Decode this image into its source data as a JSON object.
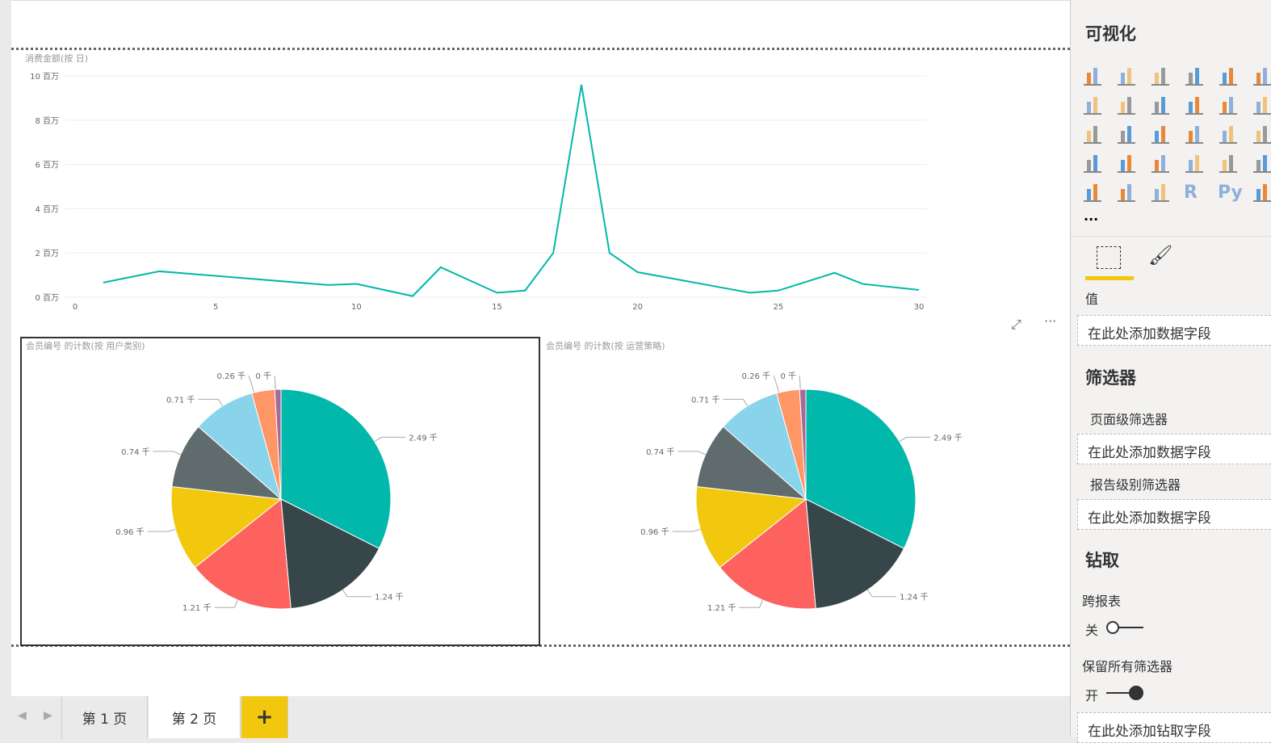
{
  "line_chart": {
    "title": "消费金额(按 日)",
    "y_ticks": [
      "0 百万",
      "2 百万",
      "4 百万",
      "6 百万",
      "8 百万",
      "10 百万"
    ],
    "x_ticks": [
      "0",
      "5",
      "10",
      "15",
      "20",
      "25",
      "30"
    ],
    "line_color": "#01b8aa"
  },
  "chart_data": [
    {
      "type": "line",
      "title": "消费金额(按 日)",
      "xlabel": "",
      "ylabel": "",
      "unit": "百万",
      "xlim": [
        0,
        30
      ],
      "ylim": [
        0,
        10
      ],
      "x": [
        1,
        3,
        9,
        10,
        12,
        13,
        15,
        16,
        17,
        18,
        19,
        20,
        24,
        25,
        27,
        28,
        30
      ],
      "y": [
        0.66,
        1.17,
        0.55,
        0.6,
        0.05,
        1.35,
        0.2,
        0.3,
        2.0,
        9.6,
        2.0,
        1.13,
        0.2,
        0.3,
        1.1,
        0.6,
        0.33
      ]
    },
    {
      "type": "pie",
      "title": "会员编号 的计数(按 用户类别)",
      "values": [
        2.49,
        1.24,
        1.21,
        0.96,
        0.74,
        0.71,
        0.26,
        0.07
      ],
      "labels": [
        "2.49 千",
        "1.24 千",
        "1.21 千",
        "0.96 千",
        "0.74 千",
        "0.71 千",
        "0.26 千",
        "0 千"
      ],
      "colors": [
        "#01b8aa",
        "#374649",
        "#fd625e",
        "#f2c80f",
        "#5f6b6d",
        "#8ad4eb",
        "#fe9666",
        "#a66999"
      ]
    },
    {
      "type": "pie",
      "title": "会员编号 的计数(按 运营策略)",
      "values": [
        2.49,
        1.24,
        1.21,
        0.96,
        0.74,
        0.71,
        0.26,
        0.07
      ],
      "labels": [
        "2.49 千",
        "1.24 千",
        "1.21 千",
        "0.96 千",
        "0.74 千",
        "0.71 千",
        "0.26 千",
        "0 千"
      ],
      "colors": [
        "#01b8aa",
        "#374649",
        "#fd625e",
        "#f2c80f",
        "#5f6b6d",
        "#8ad4eb",
        "#fe9666",
        "#a66999"
      ]
    }
  ],
  "pane": {
    "title": "可视化",
    "values_label": "值",
    "add_field": "在此处添加数据字段",
    "filters_title": "筛选器",
    "page_filters": "页面级筛选器",
    "report_filters": "报告级别筛选器",
    "drill_title": "钻取",
    "cross_report": "跨报表",
    "off": "关",
    "keep_filters": "保留所有筛选器",
    "on": "开",
    "add_drill": "在此处添加钻取字段",
    "more": "···",
    "r_label": "R",
    "py_label": "Py",
    "accent": "#f2c80f"
  },
  "tabs": [
    "第 1 页",
    "第 2 页"
  ],
  "add_tab": "+"
}
